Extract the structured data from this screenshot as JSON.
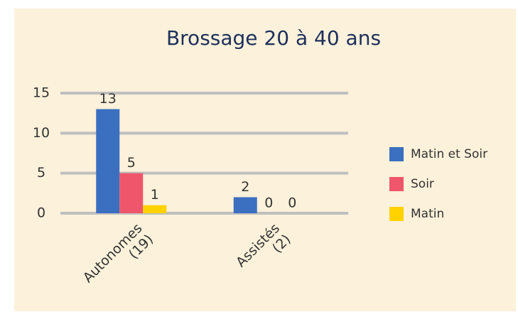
{
  "chart_data": {
    "type": "bar",
    "title": "Brossage 20 à 40 ans",
    "categories": [
      "Autonomes (19)",
      "Assistés (2)"
    ],
    "series": [
      {
        "name": "Matin et Soir",
        "color": "#3b6fc0",
        "values": [
          13,
          2
        ]
      },
      {
        "name": "Soir",
        "color": "#f0566b",
        "values": [
          5,
          0
        ]
      },
      {
        "name": "Matin",
        "color": "#ffd200",
        "values": [
          1,
          0
        ]
      }
    ],
    "ylim": [
      0,
      15
    ],
    "yticks": [
      0,
      5,
      10,
      15
    ],
    "grid": true,
    "legend": "right"
  }
}
